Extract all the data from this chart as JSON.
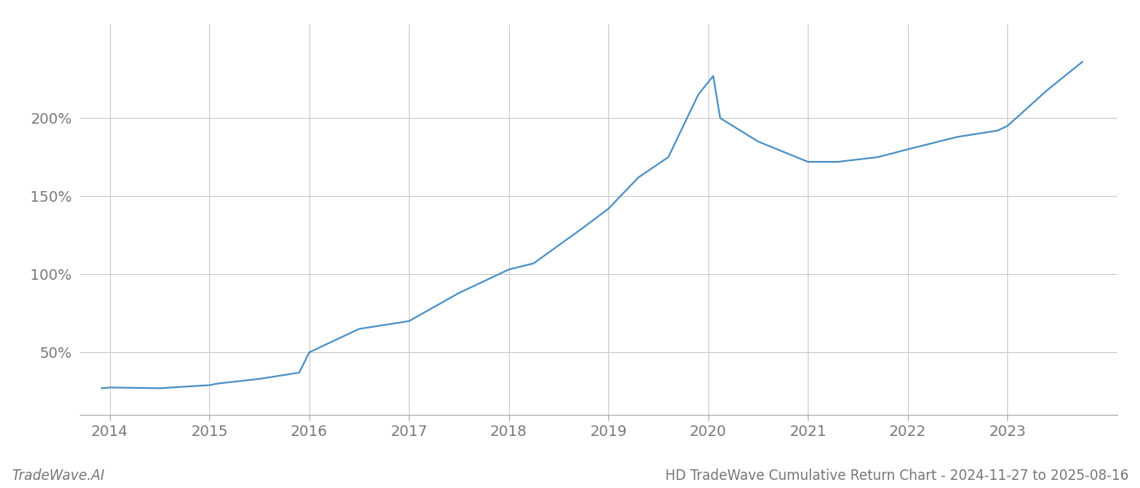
{
  "title": "HD TradeWave Cumulative Return Chart - 2024-11-27 to 2025-08-16",
  "watermark": "TradeWave.AI",
  "line_color": "#4a90c4",
  "background_color": "#ffffff",
  "grid_color": "#cccccc",
  "text_color": "#777777",
  "x_values": [
    2013.92,
    2014.0,
    2014.5,
    2015.0,
    2015.08,
    2015.5,
    2015.9,
    2016.0,
    2016.5,
    2017.0,
    2017.5,
    2018.0,
    2018.25,
    2018.75,
    2019.0,
    2019.3,
    2019.6,
    2019.9,
    2020.05,
    2020.12,
    2020.5,
    2021.0,
    2021.3,
    2021.7,
    2022.0,
    2022.5,
    2022.9,
    2023.0,
    2023.4,
    2023.75
  ],
  "y_values": [
    27,
    27.5,
    27,
    29,
    30,
    33,
    37,
    50,
    65,
    70,
    88,
    103,
    107,
    130,
    142,
    162,
    175,
    215,
    227,
    200,
    185,
    172,
    172,
    175,
    180,
    188,
    192,
    195,
    218,
    236
  ],
  "xlim": [
    2013.7,
    2024.1
  ],
  "ylim": [
    10,
    260
  ],
  "yticks": [
    50,
    100,
    150,
    200
  ],
  "ytick_labels": [
    "50%",
    "100%",
    "150%",
    "200%"
  ],
  "xticks": [
    2014,
    2015,
    2016,
    2017,
    2018,
    2019,
    2020,
    2021,
    2022,
    2023
  ],
  "line_width": 1.5,
  "figsize": [
    14,
    6
  ],
  "dpi": 100,
  "spine_bottom_color": "#aaaaaa",
  "tick_color": "#aaaaaa",
  "watermark_fontsize": 12,
  "title_fontsize": 12,
  "tick_fontsize": 13
}
